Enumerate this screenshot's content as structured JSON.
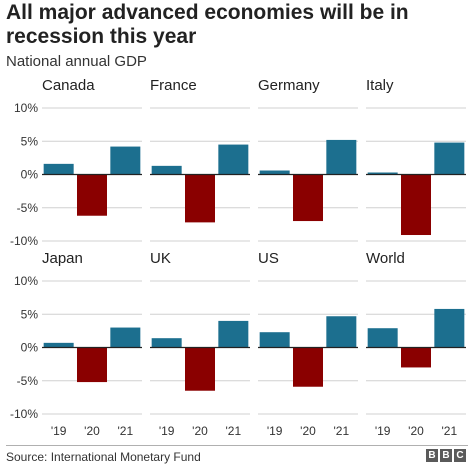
{
  "title": "All major advanced economies will be in recession this year",
  "subtitle": "National annual GDP",
  "source": "Source: International Monetary Fund",
  "logo": [
    "B",
    "B",
    "C"
  ],
  "colors": {
    "positive": "#1c6f8f",
    "negative": "#8a0000",
    "grid": "#d0d0d0",
    "axis": "#222222"
  },
  "chart_data": [
    {
      "type": "bar",
      "title": "Canada",
      "categories": [
        "'19",
        "'20",
        "'21"
      ],
      "values": [
        1.6,
        -6.2,
        4.2
      ],
      "ylim": [
        -10,
        10
      ],
      "yticks": [
        "10%",
        "5%",
        "0%",
        "-5%",
        "-10%"
      ]
    },
    {
      "type": "bar",
      "title": "France",
      "categories": [
        "'19",
        "'20",
        "'21"
      ],
      "values": [
        1.3,
        -7.2,
        4.5
      ],
      "ylim": [
        -10,
        10
      ],
      "yticks": [
        "10%",
        "5%",
        "0%",
        "-5%",
        "-10%"
      ]
    },
    {
      "type": "bar",
      "title": "Germany",
      "categories": [
        "'19",
        "'20",
        "'21"
      ],
      "values": [
        0.6,
        -7.0,
        5.2
      ],
      "ylim": [
        -10,
        10
      ],
      "yticks": [
        "10%",
        "5%",
        "0%",
        "-5%",
        "-10%"
      ]
    },
    {
      "type": "bar",
      "title": "Italy",
      "categories": [
        "'19",
        "'20",
        "'21"
      ],
      "values": [
        0.3,
        -9.1,
        4.8
      ],
      "ylim": [
        -10,
        10
      ],
      "yticks": [
        "10%",
        "5%",
        "0%",
        "-5%",
        "-10%"
      ]
    },
    {
      "type": "bar",
      "title": "Japan",
      "categories": [
        "'19",
        "'20",
        "'21"
      ],
      "values": [
        0.7,
        -5.2,
        3.0
      ],
      "ylim": [
        -10,
        10
      ],
      "yticks": [
        "10%",
        "5%",
        "0%",
        "-5%",
        "-10%"
      ]
    },
    {
      "type": "bar",
      "title": "UK",
      "categories": [
        "'19",
        "'20",
        "'21"
      ],
      "values": [
        1.4,
        -6.5,
        4.0
      ],
      "ylim": [
        -10,
        10
      ],
      "yticks": [
        "10%",
        "5%",
        "0%",
        "-5%",
        "-10%"
      ]
    },
    {
      "type": "bar",
      "title": "US",
      "categories": [
        "'19",
        "'20",
        "'21"
      ],
      "values": [
        2.3,
        -5.9,
        4.7
      ],
      "ylim": [
        -10,
        10
      ],
      "yticks": [
        "10%",
        "5%",
        "0%",
        "-5%",
        "-10%"
      ]
    },
    {
      "type": "bar",
      "title": "World",
      "categories": [
        "'19",
        "'20",
        "'21"
      ],
      "values": [
        2.9,
        -3.0,
        5.8
      ],
      "ylim": [
        -10,
        10
      ],
      "yticks": [
        "10%",
        "5%",
        "0%",
        "-5%",
        "-10%"
      ]
    }
  ]
}
